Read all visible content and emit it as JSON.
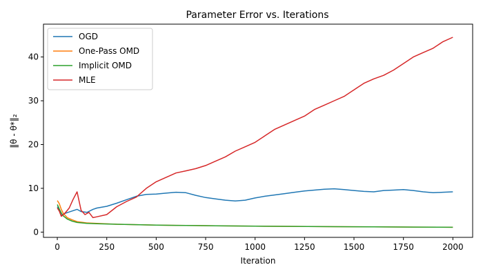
{
  "chart_data": {
    "type": "line",
    "title": "Parameter Error vs. Iterations",
    "xlabel": "Iteration",
    "ylabel": "‖θ - θ*‖₂",
    "xlim": [
      -70,
      2100
    ],
    "ylim": [
      -1.2,
      47.5
    ],
    "xticks": [
      0,
      250,
      500,
      750,
      1000,
      1250,
      1500,
      1750,
      2000
    ],
    "yticks": [
      0,
      10,
      20,
      30,
      40
    ],
    "grid": false,
    "legend_position": "top-left",
    "series": [
      {
        "name": "OGD",
        "color": "#1f77b4",
        "x": [
          0,
          10,
          20,
          40,
          60,
          80,
          100,
          120,
          150,
          180,
          200,
          250,
          300,
          350,
          400,
          450,
          500,
          550,
          600,
          650,
          700,
          750,
          800,
          850,
          900,
          950,
          1000,
          1050,
          1100,
          1150,
          1200,
          1250,
          1300,
          1350,
          1400,
          1450,
          1500,
          1550,
          1600,
          1650,
          1700,
          1750,
          1800,
          1850,
          1900,
          1950,
          2000
        ],
        "y": [
          5.8,
          5.0,
          3.8,
          4.3,
          4.6,
          4.9,
          5.2,
          4.7,
          4.5,
          5.2,
          5.5,
          5.9,
          6.6,
          7.4,
          8.2,
          8.6,
          8.7,
          8.9,
          9.1,
          9.0,
          8.4,
          7.9,
          7.6,
          7.3,
          7.1,
          7.3,
          7.8,
          8.2,
          8.5,
          8.8,
          9.1,
          9.4,
          9.6,
          9.8,
          9.9,
          9.7,
          9.5,
          9.3,
          9.2,
          9.5,
          9.6,
          9.7,
          9.5,
          9.2,
          9.0,
          9.1,
          9.2
        ]
      },
      {
        "name": "One-Pass OMD",
        "color": "#ff7f0e",
        "x": [
          0,
          10,
          20,
          30,
          50,
          75,
          100,
          150,
          200,
          300,
          400,
          500,
          600,
          700,
          800,
          1000,
          1200,
          1400,
          1600,
          1800,
          2000
        ],
        "y": [
          7.2,
          6.5,
          5.2,
          4.3,
          3.3,
          2.8,
          2.4,
          2.1,
          2.0,
          1.8,
          1.7,
          1.6,
          1.55,
          1.5,
          1.45,
          1.35,
          1.3,
          1.25,
          1.2,
          1.15,
          1.1
        ]
      },
      {
        "name": "Implicit OMD",
        "color": "#2ca02c",
        "x": [
          0,
          10,
          20,
          30,
          50,
          75,
          100,
          150,
          200,
          300,
          400,
          500,
          600,
          700,
          800,
          1000,
          1200,
          1400,
          1600,
          1800,
          2000
        ],
        "y": [
          6.3,
          5.3,
          4.4,
          3.7,
          3.0,
          2.5,
          2.2,
          2.0,
          1.9,
          1.8,
          1.7,
          1.6,
          1.55,
          1.5,
          1.45,
          1.35,
          1.3,
          1.25,
          1.2,
          1.15,
          1.1
        ]
      },
      {
        "name": "MLE",
        "color": "#d62728",
        "x": [
          0,
          10,
          20,
          40,
          60,
          80,
          100,
          120,
          140,
          160,
          180,
          200,
          250,
          300,
          350,
          400,
          450,
          500,
          550,
          600,
          650,
          700,
          750,
          800,
          850,
          900,
          950,
          1000,
          1050,
          1100,
          1150,
          1200,
          1250,
          1300,
          1350,
          1400,
          1450,
          1500,
          1550,
          1600,
          1650,
          1700,
          1750,
          1800,
          1850,
          1900,
          1950,
          2000
        ],
        "y": [
          5.5,
          4.8,
          3.6,
          4.4,
          5.5,
          7.5,
          9.2,
          5.0,
          4.0,
          4.5,
          3.3,
          3.5,
          4.0,
          5.8,
          7.0,
          8.0,
          10.0,
          11.5,
          12.5,
          13.5,
          14.0,
          14.5,
          15.2,
          16.2,
          17.2,
          18.5,
          19.5,
          20.5,
          22.0,
          23.5,
          24.5,
          25.5,
          26.5,
          28.0,
          29.0,
          30.0,
          31.0,
          32.5,
          34.0,
          35.0,
          35.8,
          37.0,
          38.5,
          40.0,
          41.0,
          42.0,
          43.5,
          44.5
        ]
      }
    ]
  }
}
